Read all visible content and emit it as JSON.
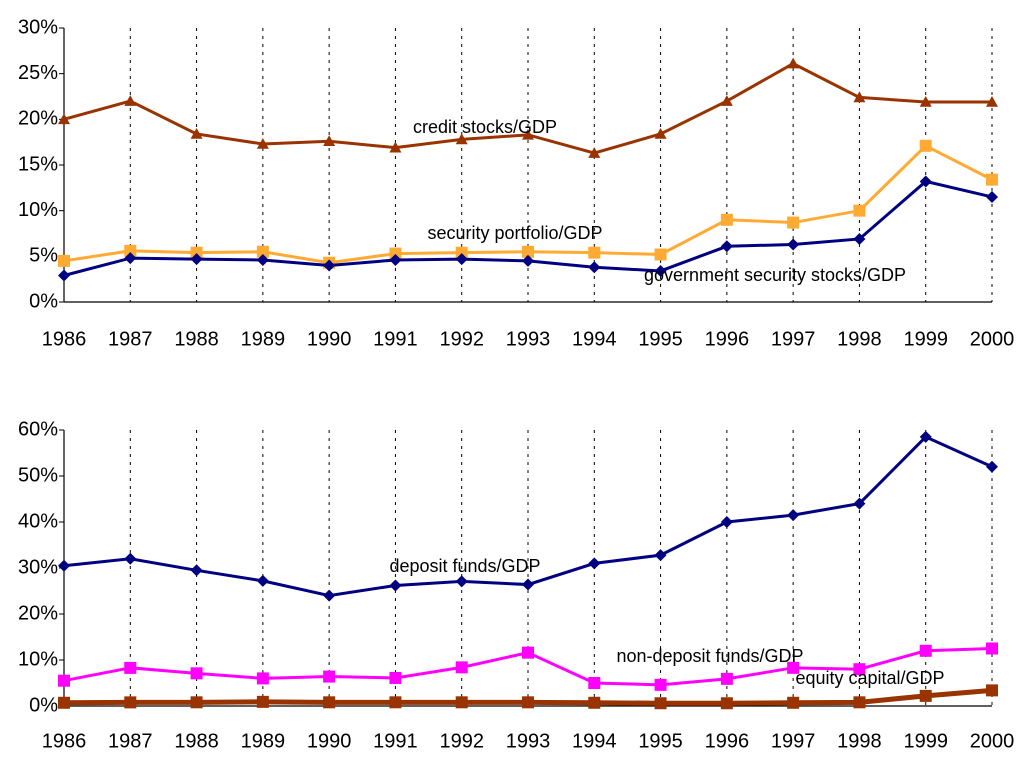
{
  "chart_data": [
    {
      "type": "line",
      "categories": [
        "1986",
        "1987",
        "1988",
        "1989",
        "1990",
        "1991",
        "1992",
        "1993",
        "1994",
        "1995",
        "1996",
        "1997",
        "1998",
        "1999",
        "2000"
      ],
      "series": [
        {
          "name": "credit stocks/GDP",
          "color": "#993300",
          "marker": "triangle",
          "line_width": 3,
          "values": [
            20,
            22,
            18.4,
            17.3,
            17.6,
            16.9,
            17.8,
            18.3,
            16.3,
            18.4,
            22,
            26.1,
            22.4,
            21.9,
            21.9
          ]
        },
        {
          "name": "security portfolio/GDP",
          "color": "#ffaa33",
          "marker": "square",
          "line_width": 3,
          "values": [
            4.5,
            5.6,
            5.4,
            5.5,
            4.3,
            5.3,
            5.4,
            5.5,
            5.4,
            5.2,
            9,
            8.7,
            10,
            17.1,
            13.4
          ]
        },
        {
          "name": "government security stocks/GDP",
          "color": "#000080",
          "marker": "diamond",
          "line_width": 3,
          "values": [
            2.9,
            4.8,
            4.7,
            4.6,
            4.0,
            4.6,
            4.7,
            4.5,
            3.8,
            3.4,
            6.1,
            6.3,
            6.9,
            13.2,
            11.5
          ]
        }
      ],
      "ylim": [
        0,
        30
      ],
      "yticks": [
        {
          "value": 0,
          "label": "0%"
        },
        {
          "value": 5,
          "label": "5%"
        },
        {
          "value": 10,
          "label": "10%"
        },
        {
          "value": 15,
          "label": "15%"
        },
        {
          "value": 20,
          "label": "20%"
        },
        {
          "value": 25,
          "label": "25%"
        },
        {
          "value": 30,
          "label": "30%"
        }
      ],
      "grid": "vertical-dashed"
    },
    {
      "type": "line",
      "categories": [
        "1986",
        "1987",
        "1988",
        "1989",
        "1990",
        "1991",
        "1992",
        "1993",
        "1994",
        "1995",
        "1996",
        "1997",
        "1998",
        "1999",
        "2000"
      ],
      "series": [
        {
          "name": "deposit funds/GDP",
          "color": "#000080",
          "marker": "diamond",
          "line_width": 3,
          "values": [
            30.5,
            32,
            29.5,
            27.2,
            24,
            26.2,
            27.1,
            26.4,
            31,
            32.8,
            40,
            41.5,
            44,
            58.5,
            52
          ]
        },
        {
          "name": "non-deposit funds/GDP",
          "color": "#ff00ff",
          "marker": "square",
          "line_width": 3,
          "values": [
            5.5,
            8.3,
            7.1,
            6,
            6.4,
            6.1,
            8.4,
            11.6,
            5,
            4.6,
            5.9,
            8.3,
            8,
            12,
            12.5
          ]
        },
        {
          "name": "equity capital/GDP",
          "color": "#993300",
          "marker": "square",
          "line_width": 5,
          "values": [
            0.7,
            0.8,
            0.8,
            0.9,
            0.8,
            0.8,
            0.8,
            0.8,
            0.7,
            0.6,
            0.6,
            0.7,
            0.8,
            2.2,
            3.4
          ]
        }
      ],
      "ylim": [
        0,
        60
      ],
      "yticks": [
        {
          "value": 0,
          "label": "0%"
        },
        {
          "value": 10,
          "label": "10%"
        },
        {
          "value": 20,
          "label": "20%"
        },
        {
          "value": 30,
          "label": "30%"
        },
        {
          "value": 40,
          "label": "40%"
        },
        {
          "value": 50,
          "label": "50%"
        },
        {
          "value": 60,
          "label": "60%"
        }
      ],
      "grid": "vertical-dashed"
    }
  ]
}
